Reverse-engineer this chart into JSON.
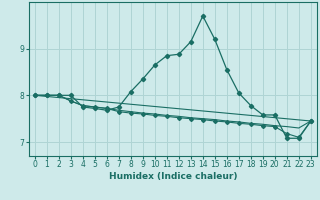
{
  "xlabel": "Humidex (Indice chaleur)",
  "background_color": "#ceeaea",
  "grid_color": "#afd4d4",
  "line_color": "#1a6e64",
  "xlim": [
    -0.5,
    23.5
  ],
  "ylim": [
    6.7,
    10.0
  ],
  "yticks": [
    7,
    8,
    9
  ],
  "xticks": [
    0,
    1,
    2,
    3,
    4,
    5,
    6,
    7,
    8,
    9,
    10,
    11,
    12,
    13,
    14,
    15,
    16,
    17,
    18,
    19,
    20,
    21,
    22,
    23
  ],
  "line_main": {
    "x": [
      0,
      1,
      2,
      3,
      4,
      5,
      6,
      7,
      8,
      9,
      10,
      11,
      12,
      13,
      14,
      15,
      16,
      17,
      18,
      19,
      20,
      21,
      22,
      23
    ],
    "y": [
      8.0,
      8.0,
      8.0,
      8.0,
      7.75,
      7.72,
      7.68,
      7.75,
      8.08,
      8.35,
      8.65,
      8.85,
      8.88,
      9.15,
      9.7,
      9.2,
      8.55,
      8.05,
      7.78,
      7.58,
      7.58,
      7.08,
      7.08,
      7.45
    ]
  },
  "line_flat1": {
    "x": [
      0,
      1,
      2,
      3,
      4,
      5,
      6,
      7,
      8,
      9,
      10,
      11,
      12,
      13,
      14,
      15,
      16,
      17,
      18,
      19,
      20,
      21,
      22,
      23
    ],
    "y": [
      8.0,
      8.0,
      8.0,
      7.88,
      7.78,
      7.75,
      7.72,
      7.68,
      7.65,
      7.62,
      7.6,
      7.57,
      7.55,
      7.52,
      7.5,
      7.48,
      7.45,
      7.43,
      7.4,
      7.38,
      7.35,
      7.33,
      7.3,
      7.45
    ]
  },
  "line_flat2": {
    "x": [
      0,
      1,
      2,
      3,
      4,
      5,
      6,
      7,
      8,
      9,
      10,
      11,
      12,
      13,
      14,
      15,
      16,
      17,
      18,
      19,
      20,
      21,
      22,
      23
    ],
    "y": [
      8.0,
      8.0,
      8.0,
      7.88,
      7.78,
      7.75,
      7.72,
      7.65,
      7.62,
      7.6,
      7.57,
      7.55,
      7.52,
      7.5,
      7.48,
      7.45,
      7.43,
      7.4,
      7.38,
      7.35,
      7.33,
      7.18,
      7.1,
      7.45
    ]
  },
  "line_diag": {
    "x": [
      0,
      23
    ],
    "y": [
      8.0,
      7.45
    ]
  }
}
